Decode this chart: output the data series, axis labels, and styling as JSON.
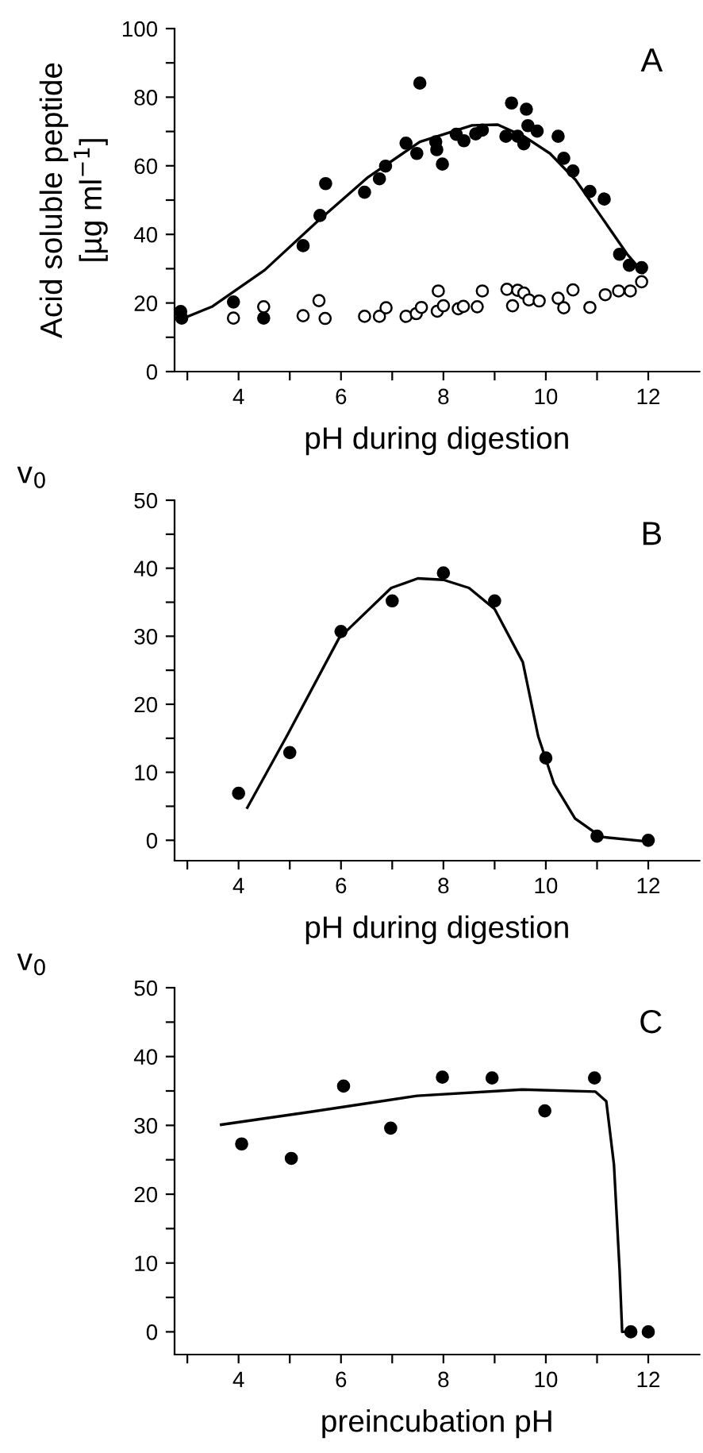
{
  "chart_data": [
    {
      "type": "scatter",
      "ylabel": "Acid soluble peptide\n[µg ml$^{−1}$]",
      "xlabel": "pH during digestion",
      "annotations": [
        "A"
      ],
      "xlim": [
        2.75,
        13
      ],
      "ylim": [
        0,
        100
      ],
      "xticks": [
        {
          "value": 3,
          "label": null
        },
        4,
        {
          "value": 5,
          "label": null
        },
        6,
        {
          "value": 7,
          "label": null
        },
        8,
        {
          "value": 9,
          "label": null
        },
        10,
        {
          "value": 11,
          "label": null
        },
        12
      ],
      "yticks": [
        0,
        {
          "value": 10,
          "label": null
        },
        20,
        {
          "value": 30,
          "label": null
        },
        40,
        {
          "value": 50,
          "label": null
        },
        60,
        {
          "value": 70,
          "label": null
        },
        80,
        {
          "value": 90,
          "label": null
        },
        100
      ],
      "grid": false,
      "series": [
        {
          "marker": "circle",
          "color": "#000000",
          "x": [
            2.87,
            2.89,
            3.9,
            4.49,
            5.26,
            5.59,
            5.7,
            6.46,
            6.75,
            6.87,
            7.27,
            7.48,
            7.54,
            7.85,
            7.87,
            7.98,
            8.25,
            8.4,
            8.63,
            8.76,
            9.22,
            9.33,
            9.45,
            9.57,
            9.62,
            9.65,
            9.83,
            10.24,
            10.35,
            10.53,
            10.86,
            11.14,
            11.44,
            11.63,
            11.87
          ],
          "values": [
            17.5,
            15.6,
            20.3,
            15.6,
            36.7,
            45.5,
            54.8,
            52.3,
            56.2,
            59.9,
            66.6,
            63.6,
            84.1,
            67.0,
            64.7,
            60.5,
            69.2,
            67.3,
            69.3,
            70.4,
            68.6,
            78.3,
            68.6,
            66.4,
            76.5,
            71.7,
            70.1,
            68.6,
            62.2,
            58.5,
            52.5,
            50.3,
            34.2,
            31.0,
            30.3
          ]
        },
        {
          "marker": "circle",
          "color": "#ffffff",
          "x": [
            3.9,
            4.49,
            5.26,
            5.57,
            5.69,
            6.46,
            6.75,
            6.88,
            7.27,
            7.47,
            7.57,
            7.88,
            7.9,
            8.0,
            8.29,
            8.39,
            8.66,
            8.76,
            9.24,
            9.35,
            9.45,
            9.57,
            9.67,
            9.87,
            10.24,
            10.35,
            10.53,
            10.86,
            11.16,
            11.42,
            11.65,
            11.87
          ],
          "values": [
            15.6,
            18.9,
            16.3,
            20.7,
            15.5,
            16.1,
            16.1,
            18.6,
            16.1,
            16.9,
            18.7,
            17.6,
            23.5,
            19.2,
            18.3,
            19.0,
            18.9,
            23.5,
            24.0,
            19.2,
            23.7,
            22.9,
            20.9,
            20.6,
            21.4,
            18.6,
            23.8,
            18.7,
            22.4,
            23.5,
            23.5,
            26.2
          ]
        },
        {
          "type": "line",
          "marker": "none",
          "color": "#000000",
          "x": [
            2.82,
            3.49,
            4.51,
            5.52,
            6.53,
            7.54,
            8.56,
            9.06,
            9.57,
            10.08,
            10.58,
            11.09,
            11.59,
            11.9
          ],
          "values": [
            14.9,
            19,
            29.6,
            43.5,
            56.7,
            67,
            71.8,
            72.0,
            68.6,
            63.6,
            55.9,
            45.0,
            34.2,
            28.8
          ]
        }
      ]
    },
    {
      "type": "scatter",
      "ylabel": "v$_{0}$",
      "xlabel": "pH during digestion",
      "annotations": [
        "B"
      ],
      "xlim": [
        2.75,
        13
      ],
      "ylim": [
        -3,
        50
      ],
      "xticks": [
        {
          "value": 3,
          "label": null
        },
        4,
        {
          "value": 5,
          "label": null
        },
        6,
        {
          "value": 7,
          "label": null
        },
        8,
        {
          "value": 9,
          "label": null
        },
        10,
        {
          "value": 11,
          "label": null
        },
        12
      ],
      "yticks": [
        0,
        {
          "value": 5,
          "label": null
        },
        10,
        {
          "value": 15,
          "label": null
        },
        20,
        {
          "value": 25,
          "label": null
        },
        30,
        {
          "value": 35,
          "label": null
        },
        40,
        {
          "value": 45,
          "label": null
        },
        50
      ],
      "grid": false,
      "series": [
        {
          "marker": "circle",
          "color": "#000000",
          "x": [
            4,
            5,
            6,
            7,
            8,
            9,
            10,
            11,
            12
          ],
          "values": [
            6.9,
            12.9,
            30.7,
            35.2,
            39.3,
            35.2,
            12.1,
            0.6,
            0
          ]
        },
        {
          "type": "line",
          "marker": "none",
          "color": "#000000",
          "x": [
            4.17,
            4.94,
            5.96,
            6.98,
            7.5,
            8.0,
            8.5,
            9.0,
            9.55,
            9.85,
            10.16,
            10.57,
            11.08,
            12
          ],
          "values": [
            4.8,
            15.3,
            29.7,
            37.1,
            38.5,
            38.3,
            37.1,
            34,
            26.2,
            15.3,
            8.3,
            3.2,
            0.5,
            -0.2
          ]
        }
      ]
    },
    {
      "type": "scatter",
      "ylabel": "v$_{0}$",
      "xlabel": "preincubation pH",
      "annotations": [
        "C"
      ],
      "xlim": [
        2.75,
        13
      ],
      "ylim": [
        -3.3,
        50
      ],
      "xticks": [
        {
          "value": 3,
          "label": null
        },
        4,
        {
          "value": 5,
          "label": null
        },
        6,
        {
          "value": 7,
          "label": null
        },
        8,
        {
          "value": 9,
          "label": null
        },
        10,
        {
          "value": 11,
          "label": null
        },
        12
      ],
      "yticks": [
        0,
        {
          "value": 5,
          "label": null
        },
        10,
        {
          "value": 15,
          "label": null
        },
        20,
        {
          "value": 25,
          "label": null
        },
        30,
        {
          "value": 35,
          "label": null
        },
        40,
        {
          "value": 45,
          "label": null
        },
        50
      ],
      "grid": false,
      "series": [
        {
          "marker": "circle",
          "color": "#000000",
          "x": [
            4.06,
            5.03,
            6.05,
            6.97,
            7.98,
            8.95,
            9.98,
            10.95,
            11.66,
            12
          ],
          "values": [
            27.3,
            25.2,
            35.7,
            29.6,
            37.0,
            36.9,
            32.1,
            36.9,
            0,
            0
          ]
        },
        {
          "type": "line",
          "marker": "none",
          "color": "#000000",
          "x": [
            3.66,
            5.44,
            7.49,
            9.54,
            10.97,
            11.18,
            11.33,
            11.44,
            11.49,
            11.69
          ],
          "values": [
            30.1,
            32.0,
            34.3,
            35.2,
            34.9,
            33.5,
            24.3,
            9.0,
            0,
            0
          ]
        }
      ]
    }
  ]
}
